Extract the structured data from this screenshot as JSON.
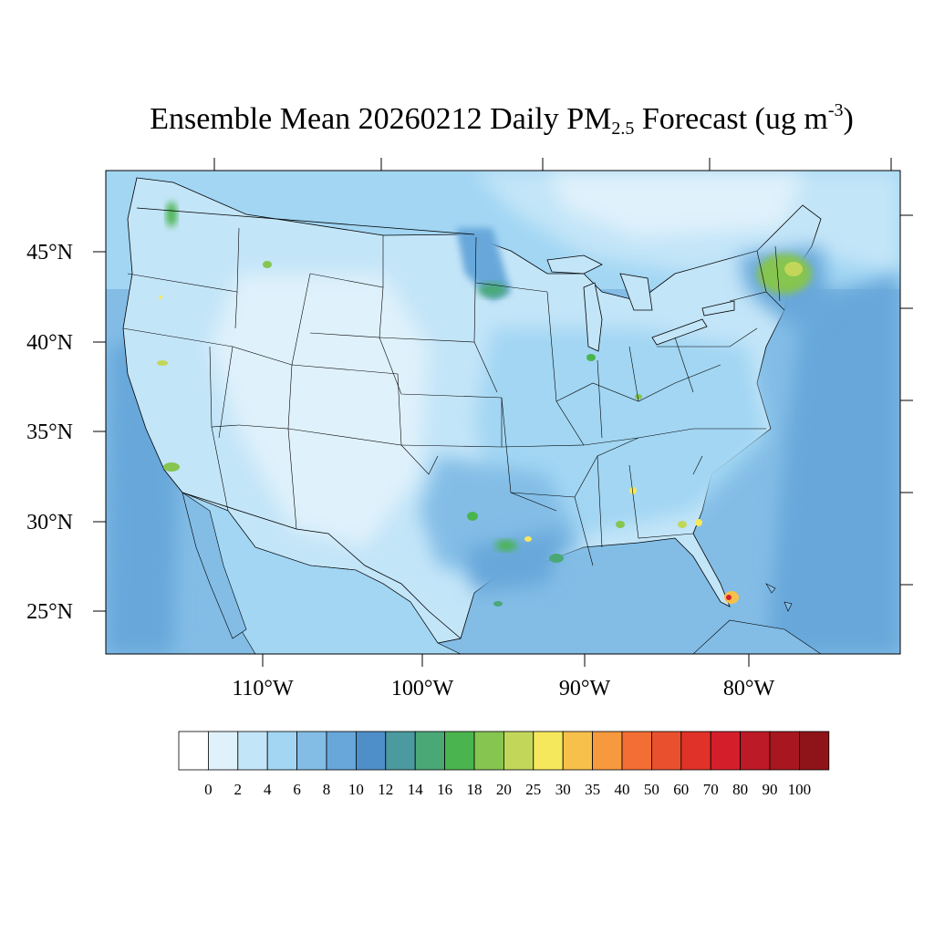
{
  "title": {
    "main": "Ensemble Mean 20260212 Daily PM",
    "sub": "2.5",
    "mid": " Forecast (ug m",
    "sup": "-3",
    "end": ")"
  },
  "map": {
    "lat_labels": [
      "45°N",
      "40°N",
      "35°N",
      "30°N",
      "25°N"
    ],
    "lon_labels": [
      "110°W",
      "100°W",
      "90°W",
      "80°W"
    ]
  },
  "colorbar": {
    "labels": [
      "0",
      "2",
      "4",
      "6",
      "8",
      "10",
      "12",
      "14",
      "16",
      "18",
      "20",
      "25",
      "30",
      "35",
      "40",
      "50",
      "60",
      "70",
      "80",
      "90",
      "100"
    ],
    "colors": [
      "#ffffff",
      "#dff1fb",
      "#c3e5f8",
      "#a2d6f3",
      "#83bde6",
      "#67a7da",
      "#4e8fca",
      "#4a9aa0",
      "#4aa877",
      "#4ab44e",
      "#86c550",
      "#c2d75a",
      "#f6e85c",
      "#f7c04a",
      "#f7993e",
      "#f36e35",
      "#e9512e",
      "#e03228",
      "#d41f2b",
      "#bc1a26",
      "#a8171f",
      "#8e1419"
    ]
  }
}
